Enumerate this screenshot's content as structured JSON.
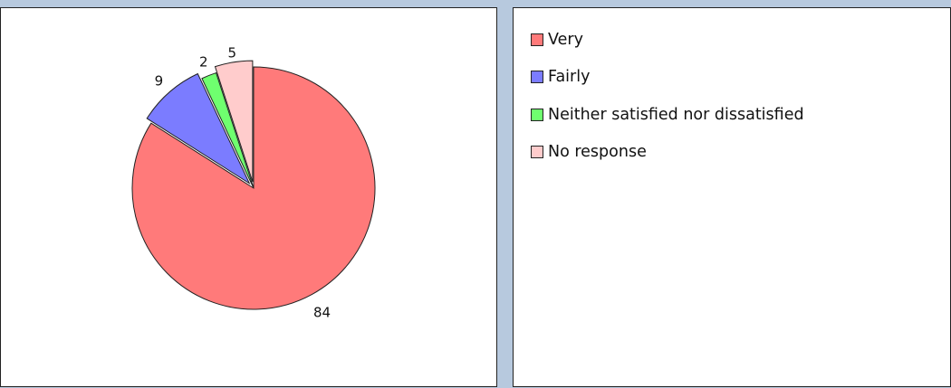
{
  "chart_data": {
    "type": "pie",
    "categories": [
      "Very",
      "Fairly",
      "Neither satisfied nor dissatisfied",
      "No response"
    ],
    "values": [
      84,
      9,
      2,
      5
    ],
    "data_labels": [
      "84",
      "9",
      "2",
      "5"
    ],
    "colors": [
      "#ff7a7a",
      "#7b7cff",
      "#6fff6f",
      "#ffcccc"
    ],
    "title": "",
    "legend_position": "right panel",
    "exploded_slices": [
      "Fairly",
      "No response"
    ]
  }
}
